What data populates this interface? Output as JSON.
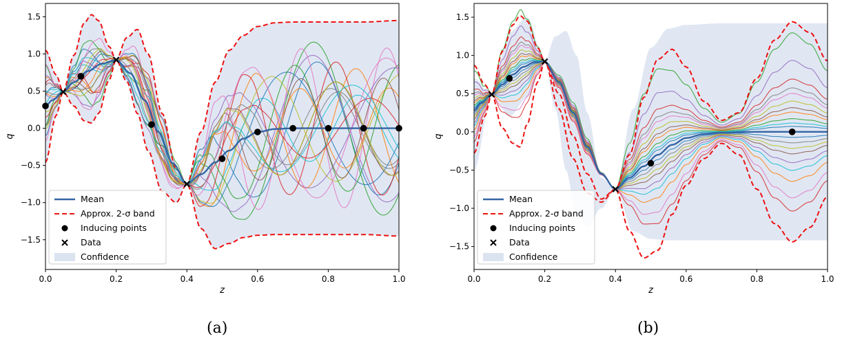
{
  "captions": [
    "(a)",
    "(b)"
  ],
  "chart_data": [
    {
      "type": "line",
      "xlabel": "z",
      "ylabel": "q",
      "xlim": [
        0,
        1
      ],
      "ylim": [
        -1.9,
        1.68
      ],
      "xticks": [
        0.0,
        0.2,
        0.4,
        0.6,
        0.8,
        1.0
      ],
      "yticks": [
        -1.5,
        -1.0,
        -0.5,
        0.0,
        0.5,
        1.0,
        1.5
      ],
      "legend_position": "lower-left",
      "legend": [
        "Mean",
        "Approx. 2-σ band",
        "Inducing points",
        "Data",
        "Confidence"
      ],
      "colors": {
        "mean": "#3465a4",
        "band": "#ee1111",
        "confidence": "#dbe3f1",
        "points": "#000000"
      },
      "data_points": [
        [
          0.05,
          0.49
        ],
        [
          0.2,
          0.92
        ],
        [
          0.4,
          -0.75
        ]
      ],
      "inducing_points": [
        [
          0.0,
          0.3
        ],
        [
          0.1,
          0.7
        ],
        [
          0.3,
          0.05
        ],
        [
          0.5,
          -0.41
        ],
        [
          0.6,
          -0.05
        ],
        [
          0.7,
          0.0
        ],
        [
          0.8,
          0.0
        ],
        [
          0.9,
          0.0
        ],
        [
          1.0,
          0.0
        ]
      ],
      "mean": {
        "x": [
          0,
          0.02,
          0.05,
          0.08,
          0.12,
          0.16,
          0.2,
          0.24,
          0.28,
          0.32,
          0.36,
          0.4,
          0.44,
          0.48,
          0.52,
          0.56,
          0.6,
          0.65,
          0.7,
          0.8,
          0.9,
          1.0
        ],
        "y": [
          0.3,
          0.38,
          0.49,
          0.62,
          0.77,
          0.87,
          0.92,
          0.74,
          0.38,
          -0.05,
          -0.47,
          -0.75,
          -0.62,
          -0.46,
          -0.3,
          -0.14,
          -0.05,
          -0.01,
          0.0,
          0.0,
          0.0,
          0.0
        ]
      },
      "band_upper": {
        "x": [
          0,
          0.03,
          0.05,
          0.08,
          0.11,
          0.13,
          0.15,
          0.18,
          0.2,
          0.23,
          0.26,
          0.29,
          0.33,
          0.37,
          0.4,
          0.44,
          0.48,
          0.52,
          0.56,
          0.6,
          0.65,
          0.7,
          0.8,
          0.9,
          1.0
        ],
        "y": [
          1.05,
          0.72,
          0.49,
          0.98,
          1.42,
          1.53,
          1.45,
          1.1,
          0.92,
          1.22,
          1.33,
          1.0,
          0.2,
          -0.55,
          -0.75,
          -0.05,
          0.62,
          1.05,
          1.25,
          1.37,
          1.42,
          1.43,
          1.43,
          1.43,
          1.45
        ]
      },
      "band_lower": {
        "x": [
          0,
          0.03,
          0.05,
          0.08,
          0.11,
          0.13,
          0.15,
          0.18,
          0.2,
          0.23,
          0.26,
          0.29,
          0.33,
          0.37,
          0.4,
          0.44,
          0.48,
          0.52,
          0.56,
          0.6,
          0.65,
          0.7,
          0.8,
          0.9,
          1.0
        ],
        "y": [
          -0.46,
          0.17,
          0.49,
          0.3,
          0.1,
          0.07,
          0.2,
          0.65,
          0.92,
          0.63,
          0.2,
          -0.3,
          -0.85,
          -1.0,
          -0.75,
          -1.35,
          -1.62,
          -1.55,
          -1.47,
          -1.44,
          -1.43,
          -1.43,
          -1.43,
          -1.43,
          -1.45
        ]
      },
      "samples": [
        {
          "color": "#1f77b4",
          "amp": 1.0,
          "freq": 9.0,
          "phase": 0.3
        },
        {
          "color": "#ff7f0e",
          "amp": 0.9,
          "freq": 11.0,
          "phase": 1.1
        },
        {
          "color": "#2ca02c",
          "amp": 1.3,
          "freq": 8.0,
          "phase": 2.0
        },
        {
          "color": "#d62728",
          "amp": 1.0,
          "freq": 12.0,
          "phase": 0.7
        },
        {
          "color": "#9467bd",
          "amp": 1.1,
          "freq": 7.5,
          "phase": 2.8
        },
        {
          "color": "#8c564b",
          "amp": 0.7,
          "freq": 10.0,
          "phase": 4.0
        },
        {
          "color": "#e377c2",
          "amp": 1.2,
          "freq": 13.0,
          "phase": 1.6
        },
        {
          "color": "#7f7f7f",
          "amp": 0.6,
          "freq": 9.5,
          "phase": 5.1
        },
        {
          "color": "#bcbd22",
          "amp": 0.8,
          "freq": 8.5,
          "phase": 3.3
        },
        {
          "color": "#17becf",
          "amp": 0.5,
          "freq": 11.5,
          "phase": 0.1
        },
        {
          "color": "#1f77b4",
          "amp": 0.85,
          "freq": 7.0,
          "phase": 4.6
        },
        {
          "color": "#ff7f0e",
          "amp": 0.6,
          "freq": 12.5,
          "phase": 2.4
        },
        {
          "color": "#2ca02c",
          "amp": 0.95,
          "freq": 10.5,
          "phase": 5.6
        },
        {
          "color": "#d62728",
          "amp": 0.45,
          "freq": 9.0,
          "phase": 3.9
        },
        {
          "color": "#9467bd",
          "amp": 0.9,
          "freq": 6.5,
          "phase": 1.3
        },
        {
          "color": "#8c564b",
          "amp": 0.75,
          "freq": 13.5,
          "phase": 0.9
        },
        {
          "color": "#e377c2",
          "amp": 1.05,
          "freq": 8.0,
          "phase": 5.0
        },
        {
          "color": "#7f7f7f",
          "amp": 0.55,
          "freq": 11.0,
          "phase": 2.2
        },
        {
          "color": "#bcbd22",
          "amp": 0.7,
          "freq": 9.8,
          "phase": 4.3
        },
        {
          "color": "#17becf",
          "amp": 0.65,
          "freq": 7.8,
          "phase": 0.6
        }
      ]
    },
    {
      "type": "line",
      "xlabel": "z",
      "ylabel": "q",
      "xlim": [
        0,
        1
      ],
      "ylim": [
        -1.8,
        1.68
      ],
      "xticks": [
        0.0,
        0.2,
        0.4,
        0.6,
        0.8,
        1.0
      ],
      "yticks": [
        -1.5,
        -1.0,
        -0.5,
        0.0,
        0.5,
        1.0,
        1.5
      ],
      "legend_position": "lower-left",
      "legend": [
        "Mean",
        "Approx. 2-σ band",
        "Inducing points",
        "Data",
        "Confidence"
      ],
      "colors": {
        "mean": "#3465a4",
        "band": "#ee1111",
        "confidence": "#dbe3f1",
        "points": "#000000"
      },
      "data_points": [
        [
          0.05,
          0.49
        ],
        [
          0.2,
          0.92
        ],
        [
          0.4,
          -0.75
        ]
      ],
      "inducing_points": [
        [
          0.1,
          0.7
        ],
        [
          0.5,
          -0.41
        ],
        [
          0.9,
          0.0
        ]
      ],
      "mean": {
        "x": [
          0,
          0.02,
          0.05,
          0.08,
          0.11,
          0.14,
          0.17,
          0.2,
          0.24,
          0.28,
          0.32,
          0.36,
          0.4,
          0.44,
          0.48,
          0.52,
          0.56,
          0.6,
          0.65,
          0.7,
          0.8,
          0.9,
          1.0
        ],
        "y": [
          0.28,
          0.38,
          0.49,
          0.62,
          0.75,
          0.85,
          0.91,
          0.92,
          0.65,
          0.25,
          -0.2,
          -0.55,
          -0.75,
          -0.6,
          -0.45,
          -0.3,
          -0.17,
          -0.08,
          -0.03,
          -0.01,
          0.0,
          0.0,
          0.0
        ]
      },
      "band_upper": {
        "x": [
          0,
          0.03,
          0.05,
          0.08,
          0.11,
          0.13,
          0.15,
          0.18,
          0.2,
          0.24,
          0.28,
          0.32,
          0.36,
          0.4,
          0.44,
          0.48,
          0.52,
          0.56,
          0.6,
          0.65,
          0.7,
          0.75,
          0.8,
          0.85,
          0.9,
          0.95,
          1.0
        ],
        "y": [
          0.87,
          0.62,
          0.49,
          1.05,
          1.4,
          1.52,
          1.45,
          1.1,
          0.92,
          0.5,
          -0.05,
          -0.55,
          -0.88,
          -0.75,
          -0.3,
          0.45,
          0.95,
          1.08,
          0.85,
          0.4,
          0.15,
          0.25,
          0.7,
          1.2,
          1.44,
          1.3,
          0.93
        ]
      },
      "band_lower": {
        "x": [
          0,
          0.03,
          0.05,
          0.08,
          0.11,
          0.13,
          0.15,
          0.18,
          0.2,
          0.24,
          0.28,
          0.32,
          0.36,
          0.4,
          0.44,
          0.48,
          0.52,
          0.56,
          0.6,
          0.65,
          0.7,
          0.75,
          0.8,
          0.85,
          0.9,
          0.95,
          1.0
        ],
        "y": [
          -0.28,
          0.2,
          0.49,
          0.05,
          -0.15,
          -0.2,
          0.1,
          0.65,
          0.92,
          0.3,
          -0.35,
          -0.8,
          -0.92,
          -0.75,
          -1.3,
          -1.65,
          -1.55,
          -1.08,
          -0.7,
          -0.35,
          -0.15,
          -0.3,
          -0.75,
          -1.2,
          -1.44,
          -1.25,
          -0.85
        ]
      },
      "confidence_upper": {
        "x": [
          0,
          0.05,
          0.1,
          0.15,
          0.2,
          0.23,
          0.26,
          0.29,
          0.32,
          0.36,
          0.4,
          0.45,
          0.5,
          0.55,
          0.6,
          0.7,
          0.8,
          0.9,
          1.0
        ],
        "y": [
          0.7,
          0.49,
          1.3,
          1.5,
          0.92,
          1.25,
          1.32,
          1.0,
          0.25,
          -0.6,
          -0.75,
          0.3,
          1.1,
          1.35,
          1.4,
          1.42,
          1.42,
          1.42,
          1.42
        ]
      },
      "confidence_lower": {
        "x": [
          0,
          0.05,
          0.1,
          0.15,
          0.2,
          0.23,
          0.26,
          0.29,
          0.32,
          0.36,
          0.4,
          0.45,
          0.5,
          0.55,
          0.6,
          0.7,
          0.8,
          0.9,
          1.0
        ],
        "y": [
          -0.5,
          0.49,
          0.2,
          0.45,
          0.92,
          0.3,
          -0.5,
          -1.1,
          -1.25,
          -1.0,
          -0.75,
          -1.3,
          -1.4,
          -1.42,
          -1.42,
          -1.42,
          -1.42,
          -1.42,
          -1.42
        ]
      },
      "sample_offsets": [
        {
          "color": "#1f77b4",
          "k": 0.05
        },
        {
          "color": "#ff7f0e",
          "k": 0.18
        },
        {
          "color": "#2ca02c",
          "k": 0.9
        },
        {
          "color": "#d62728",
          "k": -0.72
        },
        {
          "color": "#9467bd",
          "k": 0.65
        },
        {
          "color": "#8c564b",
          "k": -0.2
        },
        {
          "color": "#e377c2",
          "k": 0.35
        },
        {
          "color": "#7f7f7f",
          "k": -0.1
        },
        {
          "color": "#bcbd22",
          "k": 0.28
        },
        {
          "color": "#17becf",
          "k": -0.35
        },
        {
          "color": "#1f77b4",
          "k": -0.05
        },
        {
          "color": "#ff7f0e",
          "k": -0.45
        },
        {
          "color": "#2ca02c",
          "k": 0.12
        },
        {
          "color": "#d62728",
          "k": 0.48
        },
        {
          "color": "#9467bd",
          "k": -0.28
        },
        {
          "color": "#8c564b",
          "k": 0.22
        },
        {
          "color": "#e377c2",
          "k": -0.6
        },
        {
          "color": "#7f7f7f",
          "k": 0.4
        },
        {
          "color": "#bcbd22",
          "k": -0.15
        },
        {
          "color": "#17becf",
          "k": 0.08
        }
      ]
    }
  ]
}
